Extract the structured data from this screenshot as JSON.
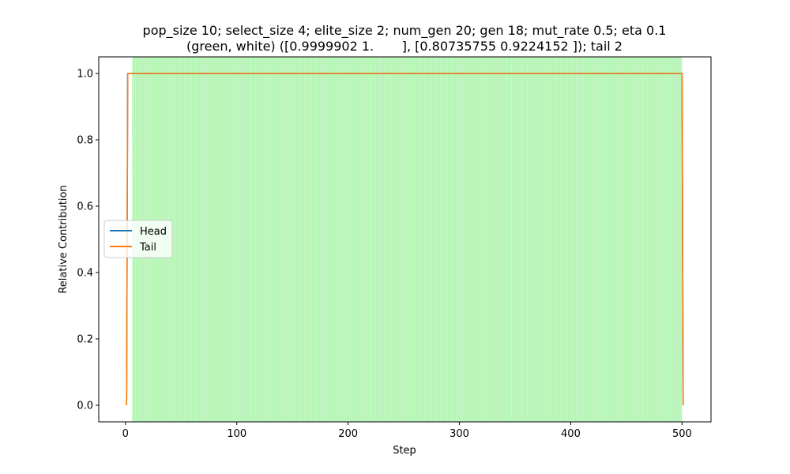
{
  "chart_data": {
    "type": "line",
    "title_line1": "pop_size 10; select_size 4; elite_size 2; num_gen 20; gen 18; mut_rate 0.5; eta 0.1",
    "title_line2": "(green, white) ([0.9999902 1.       ], [0.80735755 0.9224152 ]); tail 2",
    "xlabel": "Step",
    "ylabel": "Relative Contribution",
    "xlim": [
      -24,
      526
    ],
    "ylim": [
      -0.05,
      1.05
    ],
    "xticks": [
      0,
      100,
      200,
      300,
      400,
      500
    ],
    "xtick_labels": [
      "0",
      "100",
      "200",
      "300",
      "400",
      "500"
    ],
    "yticks": [
      0.0,
      0.2,
      0.4,
      0.6,
      0.8,
      1.0
    ],
    "ytick_labels": [
      "0.0",
      "0.2",
      "0.4",
      "0.6",
      "0.8",
      "1.0"
    ],
    "grid": false,
    "legend_placement": "center-left",
    "shaded_region": {
      "x_start": 6,
      "x_end": 500,
      "color": "#b6f5b6",
      "stripe_color": "#ffffff"
    },
    "series": [
      {
        "name": "Head",
        "color": "#1f77b4",
        "x": [
          1,
          2,
          500,
          501
        ],
        "y": [
          0.0,
          1.0,
          1.0,
          0.0
        ]
      },
      {
        "name": "Tail",
        "color": "#ff7f0e",
        "x": [
          1,
          2,
          500,
          501
        ],
        "y": [
          0.0,
          1.0,
          1.0,
          0.0
        ]
      }
    ]
  }
}
